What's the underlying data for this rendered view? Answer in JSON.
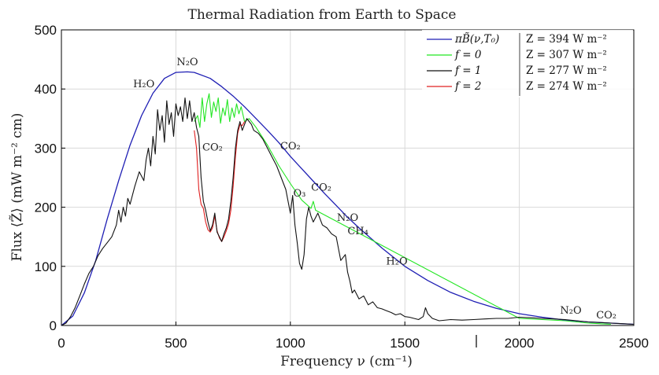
{
  "chart_data": {
    "type": "line",
    "title": "Thermal Radiation from Earth to Space",
    "xlabel": "Frequency ν (cm⁻¹)",
    "ylabel": "Flux ⟨Z̃⟩ (mW m⁻² cm)",
    "xlim": [
      0,
      2500
    ],
    "ylim": [
      0,
      500
    ],
    "xticks": [
      0,
      500,
      1000,
      1500,
      2000,
      2500
    ],
    "yticks": [
      0,
      100,
      200,
      300,
      400,
      500
    ],
    "grid": true,
    "legend_position": "top-right",
    "series": [
      {
        "name": "πB̃(ν,T₀)",
        "legend_value": "Z = 394  W m⁻²",
        "color": "#1f1fb4",
        "x": [
          0,
          50,
          100,
          150,
          200,
          250,
          300,
          350,
          400,
          450,
          500,
          550,
          580,
          650,
          700,
          750,
          800,
          850,
          900,
          950,
          1000,
          1050,
          1100,
          1150,
          1200,
          1250,
          1300,
          1400,
          1500,
          1600,
          1700,
          1800,
          1900,
          2000,
          2100,
          2200,
          2300,
          2400,
          2500
        ],
        "y": [
          0,
          16,
          55,
          110,
          180,
          245,
          305,
          355,
          393,
          418,
          428,
          429,
          428,
          418,
          404,
          388,
          370,
          350,
          330,
          309,
          286,
          265,
          244,
          223,
          203,
          183,
          165,
          131,
          100,
          76,
          56,
          41,
          29,
          20,
          14,
          9,
          6,
          4,
          2
        ]
      },
      {
        "name": "f = 0",
        "legend_value": "Z = 307  W m⁻²",
        "color": "#22e622",
        "x": [
          580,
          595,
          605,
          615,
          625,
          635,
          645,
          655,
          665,
          675,
          685,
          695,
          705,
          715,
          725,
          735,
          745,
          755,
          765,
          775,
          785,
          800,
          820,
          850,
          900,
          950,
          1000,
          1050,
          1070,
          1090,
          1100,
          1110,
          2000,
          2100,
          2200,
          2300,
          2400
        ],
        "y": [
          345,
          355,
          335,
          385,
          345,
          375,
          392,
          352,
          378,
          362,
          385,
          342,
          368,
          355,
          382,
          345,
          368,
          352,
          375,
          358,
          370,
          345,
          350,
          335,
          305,
          270,
          240,
          212,
          205,
          198,
          210,
          195,
          12,
          10,
          8,
          4,
          2
        ]
      },
      {
        "name": "f = 1",
        "legend_value": "Z = 277  W m⁻²",
        "color": "#111111",
        "x": [
          0,
          20,
          40,
          60,
          80,
          100,
          120,
          140,
          160,
          180,
          200,
          220,
          240,
          250,
          260,
          270,
          280,
          290,
          300,
          320,
          340,
          360,
          370,
          380,
          390,
          400,
          410,
          420,
          430,
          440,
          450,
          460,
          470,
          480,
          490,
          500,
          510,
          520,
          530,
          540,
          550,
          560,
          570,
          580,
          590,
          600,
          610,
          620,
          630,
          640,
          650,
          660,
          670,
          680,
          690,
          700,
          710,
          720,
          730,
          740,
          750,
          760,
          770,
          780,
          790,
          800,
          810,
          820,
          830,
          840,
          860,
          880,
          900,
          920,
          940,
          960,
          980,
          990,
          1000,
          1010,
          1020,
          1030,
          1040,
          1050,
          1060,
          1070,
          1080,
          1090,
          1100,
          1120,
          1140,
          1160,
          1180,
          1200,
          1220,
          1240,
          1250,
          1260,
          1270,
          1280,
          1300,
          1320,
          1340,
          1360,
          1380,
          1400,
          1420,
          1440,
          1460,
          1480,
          1500,
          1520,
          1540,
          1560,
          1580,
          1590,
          1600,
          1620,
          1650,
          1700,
          1750,
          1800,
          1850,
          1900,
          1950,
          2000,
          2050,
          2100,
          2150,
          2200,
          2250,
          2300,
          2350,
          2400,
          2450,
          2500
        ],
        "y": [
          0,
          4,
          15,
          30,
          50,
          70,
          88,
          100,
          118,
          130,
          140,
          150,
          170,
          195,
          175,
          200,
          185,
          215,
          205,
          235,
          260,
          245,
          280,
          300,
          270,
          320,
          290,
          365,
          330,
          355,
          310,
          380,
          340,
          360,
          320,
          375,
          355,
          370,
          345,
          385,
          350,
          380,
          345,
          360,
          335,
          320,
          250,
          210,
          195,
          175,
          160,
          170,
          190,
          158,
          150,
          142,
          155,
          165,
          180,
          210,
          250,
          300,
          330,
          345,
          330,
          340,
          350,
          345,
          340,
          330,
          325,
          315,
          300,
          285,
          270,
          250,
          230,
          210,
          190,
          220,
          170,
          140,
          105,
          95,
          120,
          180,
          200,
          185,
          175,
          190,
          170,
          165,
          155,
          150,
          110,
          120,
          90,
          75,
          55,
          60,
          45,
          50,
          35,
          40,
          30,
          28,
          25,
          22,
          18,
          20,
          15,
          14,
          12,
          10,
          15,
          30,
          20,
          12,
          8,
          10,
          9,
          10,
          11,
          12,
          12,
          14,
          13,
          12,
          11,
          10,
          8,
          6,
          5,
          4,
          3,
          2
        ]
      },
      {
        "name": "f = 2",
        "legend_value": "Z = 274  W m⁻²",
        "color": "#e02020",
        "x": [
          580,
          590,
          600,
          610,
          620,
          630,
          640,
          650,
          660,
          670,
          680,
          690,
          700,
          710,
          720,
          730,
          740,
          750,
          760,
          770,
          780,
          790,
          800
        ],
        "y": [
          330,
          300,
          230,
          205,
          198,
          175,
          162,
          158,
          165,
          185,
          160,
          148,
          142,
          150,
          160,
          172,
          195,
          235,
          285,
          325,
          340,
          338,
          345
        ]
      }
    ],
    "annotations": [
      {
        "text": "N₂O",
        "x": 550,
        "y": 440
      },
      {
        "text": "H₂O",
        "x": 360,
        "y": 403
      },
      {
        "text": "CO₂",
        "x": 660,
        "y": 296
      },
      {
        "text": "CO₂",
        "x": 1000,
        "y": 298
      },
      {
        "text": "O₃",
        "x": 1040,
        "y": 218
      },
      {
        "text": "CO₂",
        "x": 1135,
        "y": 228
      },
      {
        "text": "N₂O",
        "x": 1250,
        "y": 177
      },
      {
        "text": "CH₄",
        "x": 1295,
        "y": 154
      },
      {
        "text": "H₂O",
        "x": 1465,
        "y": 103
      },
      {
        "text": "N₂O",
        "x": 2225,
        "y": 20
      },
      {
        "text": "CO₂",
        "x": 2380,
        "y": 12
      }
    ]
  }
}
